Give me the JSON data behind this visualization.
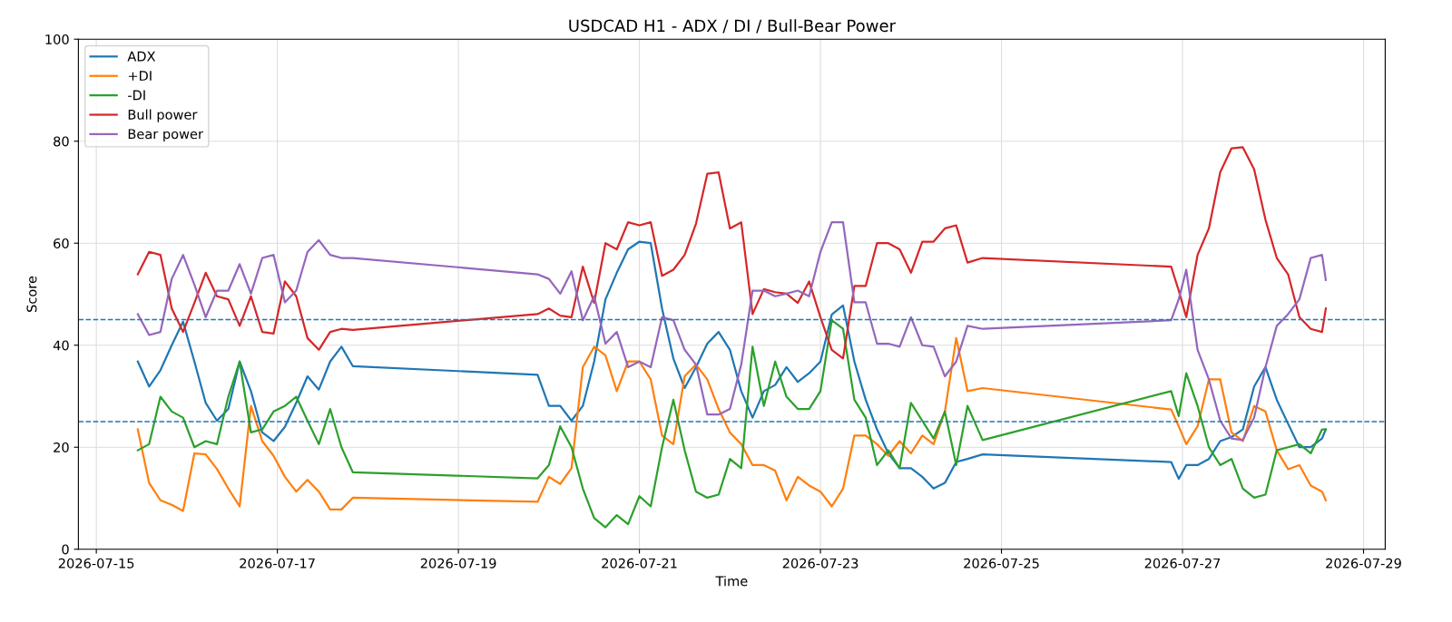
{
  "chart_data": {
    "type": "line",
    "title": "USDCAD H1 - ADX / DI / Bull-Bear Power",
    "xlabel": "Time",
    "ylabel": "Score",
    "x": [
      "2026-07-15T11:00",
      "2026-07-15T14:00",
      "2026-07-15T17:00",
      "2026-07-15T20:00",
      "2026-07-15T23:00",
      "2026-07-16T02:00",
      "2026-07-16T05:00",
      "2026-07-16T08:00",
      "2026-07-16T11:00",
      "2026-07-16T14:00",
      "2026-07-16T17:00",
      "2026-07-16T20:00",
      "2026-07-16T23:00",
      "2026-07-17T02:00",
      "2026-07-17T05:00",
      "2026-07-17T08:00",
      "2026-07-17T11:00",
      "2026-07-17T14:00",
      "2026-07-17T17:00",
      "2026-07-17T20:00",
      "2026-07-19T21:00",
      "2026-07-20T00:00",
      "2026-07-20T03:00",
      "2026-07-20T06:00",
      "2026-07-20T09:00",
      "2026-07-20T12:00",
      "2026-07-20T15:00",
      "2026-07-20T18:00",
      "2026-07-20T21:00",
      "2026-07-21T00:00",
      "2026-07-21T03:00",
      "2026-07-21T06:00",
      "2026-07-21T09:00",
      "2026-07-21T12:00",
      "2026-07-21T15:00",
      "2026-07-21T18:00",
      "2026-07-21T21:00",
      "2026-07-22T00:00",
      "2026-07-22T03:00",
      "2026-07-22T06:00",
      "2026-07-22T09:00",
      "2026-07-22T12:00",
      "2026-07-22T15:00",
      "2026-07-22T18:00",
      "2026-07-22T21:00",
      "2026-07-23T00:00",
      "2026-07-23T03:00",
      "2026-07-23T06:00",
      "2026-07-23T09:00",
      "2026-07-23T12:00",
      "2026-07-23T15:00",
      "2026-07-23T18:00",
      "2026-07-23T21:00",
      "2026-07-24T00:00",
      "2026-07-24T03:00",
      "2026-07-24T06:00",
      "2026-07-24T09:00",
      "2026-07-24T12:00",
      "2026-07-24T15:00",
      "2026-07-24T19:00",
      "2026-07-26T21:00",
      "2026-07-26T23:00",
      "2026-07-27T01:00",
      "2026-07-27T04:00",
      "2026-07-27T07:00",
      "2026-07-27T10:00",
      "2026-07-27T13:00",
      "2026-07-27T16:00",
      "2026-07-27T19:00",
      "2026-07-27T22:00",
      "2026-07-28T01:00",
      "2026-07-28T04:00",
      "2026-07-28T07:00",
      "2026-07-28T10:00",
      "2026-07-28T13:00",
      "2026-07-28T14:00"
    ],
    "series": [
      {
        "name": "ADX",
        "color": "#1f77b4",
        "values": [
          36.8,
          31.9,
          35.1,
          40,
          44.6,
          36.8,
          28.7,
          25.2,
          27.5,
          36.8,
          31,
          22.9,
          21.2,
          24,
          28.7,
          33.9,
          31.3,
          36.8,
          39.7,
          35.9,
          34.2,
          28.1,
          28.1,
          25.2,
          28.1,
          36.8,
          49,
          54.2,
          58.8,
          60.3,
          60,
          47.2,
          37.4,
          31.6,
          35.7,
          40.3,
          42.6,
          39.1,
          31,
          25.8,
          31,
          32.2,
          35.7,
          32.8,
          34.5,
          36.8,
          46,
          47.8,
          36.8,
          29.3,
          23.5,
          18.8,
          15.9,
          15.9,
          14.2,
          11.9,
          13,
          17.1,
          17.7,
          18.6,
          17.1,
          13.8,
          16.5,
          16.5,
          17.7,
          21.2,
          22,
          23.5,
          31.9,
          35.7,
          29.3,
          24.6,
          20,
          20,
          21.7,
          23.5
        ]
      },
      {
        "name": "+DI",
        "color": "#ff7f0e",
        "values": [
          23.5,
          13,
          9.6,
          8.7,
          7.5,
          18.8,
          18.6,
          15.7,
          11.9,
          8.4,
          28.1,
          21.2,
          18.3,
          14.2,
          11.3,
          13.6,
          11.3,
          7.8,
          7.8,
          10.1,
          9.3,
          14.2,
          12.8,
          15.9,
          35.7,
          39.7,
          38,
          31,
          36.8,
          36.8,
          33.3,
          22.3,
          20.6,
          33.9,
          36.2,
          33.3,
          27.5,
          22.9,
          20.6,
          16.5,
          16.5,
          15.4,
          9.6,
          14.2,
          12.5,
          11.3,
          8.4,
          11.9,
          22.3,
          22.3,
          20.6,
          18.3,
          21.2,
          18.8,
          22.3,
          20.6,
          27,
          41.4,
          31,
          31.6,
          27.4,
          24.1,
          20.6,
          24.1,
          33.3,
          33.3,
          22.9,
          21.2,
          28.1,
          27,
          19.4,
          15.7,
          16.5,
          12.5,
          11.3,
          9.6
        ]
      },
      {
        "name": "-DI",
        "color": "#2ca02c",
        "values": [
          19.4,
          20.6,
          29.9,
          27,
          25.8,
          20,
          21.2,
          20.6,
          29.9,
          36.8,
          22.9,
          23.5,
          27,
          28.1,
          29.9,
          25.2,
          20.6,
          27.5,
          20,
          15.1,
          13.9,
          16.5,
          24.1,
          20,
          11.9,
          6.1,
          4.3,
          6.7,
          4.9,
          10.4,
          8.4,
          20,
          29.3,
          19.4,
          11.3,
          10.1,
          10.7,
          17.7,
          15.9,
          39.7,
          28.1,
          36.8,
          29.9,
          27.5,
          27.5,
          31,
          44.9,
          43.2,
          29.3,
          25.8,
          16.5,
          19.4,
          15.9,
          28.7,
          25.2,
          21.7,
          27,
          16.5,
          28.1,
          21.4,
          31,
          26.1,
          34.5,
          28.1,
          20,
          16.5,
          17.7,
          11.9,
          10.1,
          10.7,
          19.4,
          20,
          20.6,
          18.8,
          23.5,
          23.5
        ]
      },
      {
        "name": "Bull power",
        "color": "#d62728",
        "values": [
          53.9,
          58.3,
          57.7,
          47.2,
          42.6,
          48.3,
          54.2,
          49.6,
          49,
          43.8,
          49.6,
          42.6,
          42.3,
          52.5,
          49.6,
          41.4,
          39.1,
          42.6,
          43.2,
          43,
          46.1,
          47.2,
          45.8,
          45.5,
          55.4,
          48.3,
          60,
          58.8,
          64.1,
          63.5,
          64.1,
          53.6,
          54.8,
          57.7,
          63.8,
          73.6,
          73.9,
          62.9,
          64.1,
          46.1,
          51,
          50.4,
          50.1,
          48.3,
          52.5,
          45.5,
          39.1,
          37.4,
          51.6,
          51.6,
          60,
          60,
          58.8,
          54.2,
          60.3,
          60.3,
          62.9,
          63.5,
          56.2,
          57.1,
          55.4,
          50.7,
          45.5,
          57.7,
          62.9,
          73.9,
          78.6,
          78.8,
          74.5,
          64.6,
          57.1,
          53.9,
          45.5,
          43.2,
          42.6,
          47.2
        ]
      },
      {
        "name": "Bear power",
        "color": "#9467bd",
        "values": [
          46.1,
          42,
          42.6,
          53,
          57.7,
          51.9,
          45.5,
          50.7,
          50.7,
          55.9,
          50.1,
          57.1,
          57.7,
          48.4,
          50.7,
          58.3,
          60.6,
          57.7,
          57.1,
          57.1,
          53.9,
          53,
          50.1,
          54.5,
          44.9,
          49.6,
          40.3,
          42.6,
          35.7,
          36.8,
          35.7,
          45.5,
          44.9,
          39.1,
          36.2,
          26.4,
          26.4,
          27.5,
          36.2,
          50.7,
          50.7,
          49.6,
          50.1,
          50.7,
          49.6,
          58.3,
          64.1,
          64.1,
          48.4,
          48.4,
          40.3,
          40.3,
          39.7,
          45.5,
          40,
          39.7,
          33.9,
          36.8,
          43.8,
          43.2,
          44.9,
          49,
          54.8,
          39.1,
          33.3,
          25.2,
          21.7,
          21.4,
          25.8,
          35.7,
          43.8,
          46.1,
          49,
          57.1,
          57.7,
          52.8
        ]
      }
    ],
    "ref_lines": [
      {
        "axis": "y",
        "value": 45,
        "color": "#1f77b4",
        "line_style": "dashed"
      },
      {
        "axis": "y",
        "value": 25,
        "color": "#1f77b4",
        "line_style": "dashed"
      }
    ],
    "xlim": [
      "2026-07-14T19:15",
      "2026-07-29T05:45"
    ],
    "xticks": [
      "2026-07-15",
      "2026-07-17",
      "2026-07-19",
      "2026-07-21",
      "2026-07-23",
      "2026-07-25",
      "2026-07-27",
      "2026-07-29"
    ],
    "ylim": [
      0,
      100
    ],
    "yticks": [
      0,
      20,
      40,
      60,
      80,
      100
    ],
    "grid": true,
    "legend": "top left",
    "marker": "none",
    "line_style": "solid"
  }
}
